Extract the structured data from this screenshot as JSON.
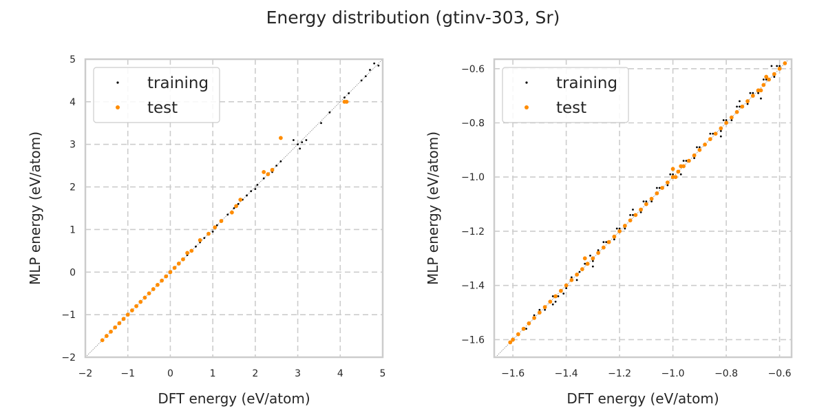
{
  "figure": {
    "title": "Energy distribution (gtinv-303, Sr)"
  },
  "colors": {
    "training": "#000000",
    "test": "#ff8c00",
    "grid": "#cccccc",
    "spine": "#cccccc",
    "reference_line": "#808080"
  },
  "chart_data": [
    {
      "type": "scatter",
      "xlabel": "DFT energy (eV/atom)",
      "ylabel": "MLP energy (eV/atom)",
      "xlim": [
        -2,
        5
      ],
      "ylim": [
        -2,
        5
      ],
      "xticks": [
        -2,
        -1,
        0,
        1,
        2,
        3,
        4,
        5
      ],
      "yticks": [
        -2,
        -1,
        0,
        1,
        2,
        3,
        4,
        5
      ],
      "xtick_labels": [
        "−2",
        "−1",
        "0",
        "1",
        "2",
        "3",
        "4",
        "5"
      ],
      "ytick_labels": [
        "−2",
        "−1",
        "0",
        "1",
        "2",
        "3",
        "4",
        "5"
      ],
      "grid": true,
      "grid_style": "dashed",
      "legend_position": "upper-left",
      "reference_line": "y=x",
      "series": [
        {
          "name": "training",
          "color": "#000000",
          "x": [
            -1.6,
            -1.5,
            -1.4,
            -1.3,
            -1.2,
            -1.1,
            -1.0,
            -0.9,
            -0.8,
            -0.7,
            -0.6,
            -0.5,
            -0.4,
            -0.3,
            -0.2,
            -0.1,
            0.0,
            0.1,
            0.2,
            0.3,
            0.4,
            0.5,
            0.6,
            0.7,
            0.8,
            0.9,
            1.0,
            1.1,
            1.2,
            1.35,
            1.5,
            1.6,
            1.7,
            1.8,
            1.9,
            2.0,
            2.05,
            2.2,
            2.3,
            2.4,
            2.5,
            2.6,
            2.9,
            3.0,
            3.05,
            3.1,
            3.2,
            3.55,
            3.75,
            4.1,
            4.2,
            4.5,
            4.6,
            4.7,
            4.8,
            4.9
          ],
          "y": [
            -1.6,
            -1.5,
            -1.4,
            -1.3,
            -1.2,
            -1.1,
            -1.0,
            -0.9,
            -0.8,
            -0.7,
            -0.6,
            -0.5,
            -0.4,
            -0.3,
            -0.2,
            -0.1,
            0.0,
            0.1,
            0.2,
            0.3,
            0.4,
            0.5,
            0.6,
            0.7,
            0.8,
            0.9,
            0.95,
            1.1,
            1.2,
            1.35,
            1.5,
            1.6,
            1.7,
            1.8,
            1.9,
            1.95,
            2.05,
            2.2,
            2.3,
            2.35,
            2.5,
            2.6,
            3.1,
            3.0,
            2.9,
            3.05,
            3.1,
            3.5,
            3.75,
            4.1,
            4.2,
            4.5,
            4.6,
            4.75,
            4.9,
            4.85
          ]
        },
        {
          "name": "test",
          "color": "#ff8c00",
          "x": [
            -1.6,
            -1.5,
            -1.4,
            -1.3,
            -1.2,
            -1.1,
            -1.0,
            -0.9,
            -0.8,
            -0.7,
            -0.6,
            -0.5,
            -0.4,
            -0.3,
            -0.2,
            -0.1,
            0.0,
            0.1,
            0.2,
            0.3,
            0.4,
            0.5,
            0.7,
            0.9,
            1.05,
            1.2,
            1.45,
            1.55,
            1.65,
            2.2,
            2.3,
            2.4,
            2.6,
            4.1,
            4.15
          ],
          "y": [
            -1.6,
            -1.5,
            -1.4,
            -1.3,
            -1.2,
            -1.1,
            -1.0,
            -0.9,
            -0.8,
            -0.7,
            -0.6,
            -0.5,
            -0.4,
            -0.3,
            -0.2,
            -0.1,
            0.0,
            0.1,
            0.2,
            0.3,
            0.45,
            0.5,
            0.75,
            0.9,
            1.05,
            1.2,
            1.4,
            1.55,
            1.7,
            2.35,
            2.3,
            2.4,
            3.15,
            4.0,
            4.0
          ]
        }
      ]
    },
    {
      "type": "scatter",
      "xlabel": "DFT energy (eV/atom)",
      "ylabel": "MLP energy (eV/atom)",
      "xlim": [
        -1.67,
        -0.555
      ],
      "ylim": [
        -1.665,
        -0.565
      ],
      "xticks": [
        -1.6,
        -1.4,
        -1.2,
        -1.0,
        -0.8,
        -0.6
      ],
      "yticks": [
        -1.6,
        -1.4,
        -1.2,
        -1.0,
        -0.8,
        -0.6
      ],
      "xtick_labels": [
        "−1.6",
        "−1.4",
        "−1.2",
        "−1.0",
        "−0.8",
        "−0.6"
      ],
      "ytick_labels": [
        "−1.6",
        "−1.4",
        "−1.2",
        "−1.0",
        "−0.8",
        "−0.6"
      ],
      "grid": true,
      "grid_style": "dashed",
      "legend_position": "upper-left",
      "reference_line": "y=x",
      "series": [
        {
          "name": "training",
          "color": "#000000",
          "x": [
            -1.6,
            -1.58,
            -1.55,
            -1.52,
            -1.5,
            -1.48,
            -1.45,
            -1.43,
            -1.4,
            -1.38,
            -1.35,
            -1.33,
            -1.3,
            -1.28,
            -1.25,
            -1.22,
            -1.2,
            -1.18,
            -1.15,
            -1.12,
            -1.1,
            -1.08,
            -1.05,
            -1.02,
            -1.0,
            -0.98,
            -0.95,
            -0.92,
            -0.9,
            -0.88,
            -0.85,
            -0.82,
            -0.8,
            -0.78,
            -0.75,
            -0.72,
            -0.7,
            -0.68,
            -0.65,
            -0.62,
            -0.6,
            -0.58,
            -1.44,
            -1.41,
            -1.36,
            -1.31,
            -1.26,
            -1.21,
            -1.16,
            -1.11,
            -1.06,
            -1.01,
            -0.96,
            -0.91,
            -0.86,
            -0.81,
            -0.76,
            -0.71,
            -0.66,
            -0.61,
            -1.45,
            -1.3,
            -1.15,
            -0.97,
            -0.82,
            -0.75,
            -0.67,
            -0.63
          ],
          "y": [
            -1.6,
            -1.58,
            -1.56,
            -1.51,
            -1.49,
            -1.49,
            -1.44,
            -1.44,
            -1.41,
            -1.37,
            -1.35,
            -1.32,
            -1.31,
            -1.27,
            -1.24,
            -1.23,
            -1.19,
            -1.19,
            -1.14,
            -1.13,
            -1.09,
            -1.09,
            -1.04,
            -1.03,
            -0.99,
            -0.98,
            -0.94,
            -0.93,
            -0.89,
            -0.88,
            -0.84,
            -0.83,
            -0.79,
            -0.79,
            -0.74,
            -0.73,
            -0.69,
            -0.69,
            -0.64,
            -0.63,
            -0.59,
            -0.58,
            -1.46,
            -1.43,
            -1.38,
            -1.29,
            -1.24,
            -1.19,
            -1.14,
            -1.09,
            -1.04,
            -0.99,
            -0.94,
            -0.89,
            -0.84,
            -0.79,
            -0.74,
            -0.69,
            -0.64,
            -0.59,
            -1.47,
            -1.33,
            -1.12,
            -0.99,
            -0.85,
            -0.72,
            -0.71,
            -0.59
          ]
        },
        {
          "name": "test",
          "color": "#ff8c00",
          "x": [
            -1.61,
            -1.6,
            -1.58,
            -1.56,
            -1.54,
            -1.52,
            -1.5,
            -1.48,
            -1.46,
            -1.44,
            -1.42,
            -1.4,
            -1.38,
            -1.36,
            -1.34,
            -1.32,
            -1.3,
            -1.28,
            -1.26,
            -1.24,
            -1.22,
            -1.2,
            -1.18,
            -1.16,
            -1.14,
            -1.12,
            -1.1,
            -1.08,
            -1.06,
            -1.04,
            -1.02,
            -1.0,
            -0.98,
            -0.96,
            -0.94,
            -0.92,
            -0.9,
            -0.88,
            -0.86,
            -0.84,
            -0.82,
            -0.8,
            -0.78,
            -0.76,
            -0.74,
            -0.72,
            -0.7,
            -0.68,
            -0.66,
            -0.64,
            -0.62,
            -0.6,
            -0.58,
            -1.33,
            -1.0,
            -0.99,
            -0.97,
            -0.67,
            -0.65
          ],
          "y": [
            -1.61,
            -1.6,
            -1.58,
            -1.56,
            -1.54,
            -1.52,
            -1.5,
            -1.48,
            -1.46,
            -1.44,
            -1.42,
            -1.4,
            -1.38,
            -1.36,
            -1.34,
            -1.32,
            -1.3,
            -1.28,
            -1.26,
            -1.24,
            -1.22,
            -1.2,
            -1.18,
            -1.16,
            -1.14,
            -1.12,
            -1.1,
            -1.08,
            -1.06,
            -1.04,
            -1.02,
            -1.0,
            -0.98,
            -0.96,
            -0.94,
            -0.92,
            -0.9,
            -0.88,
            -0.86,
            -0.84,
            -0.82,
            -0.8,
            -0.78,
            -0.76,
            -0.74,
            -0.72,
            -0.7,
            -0.68,
            -0.66,
            -0.64,
            -0.62,
            -0.6,
            -0.58,
            -1.3,
            -0.97,
            -1.0,
            -0.96,
            -0.68,
            -0.63
          ]
        }
      ]
    }
  ]
}
